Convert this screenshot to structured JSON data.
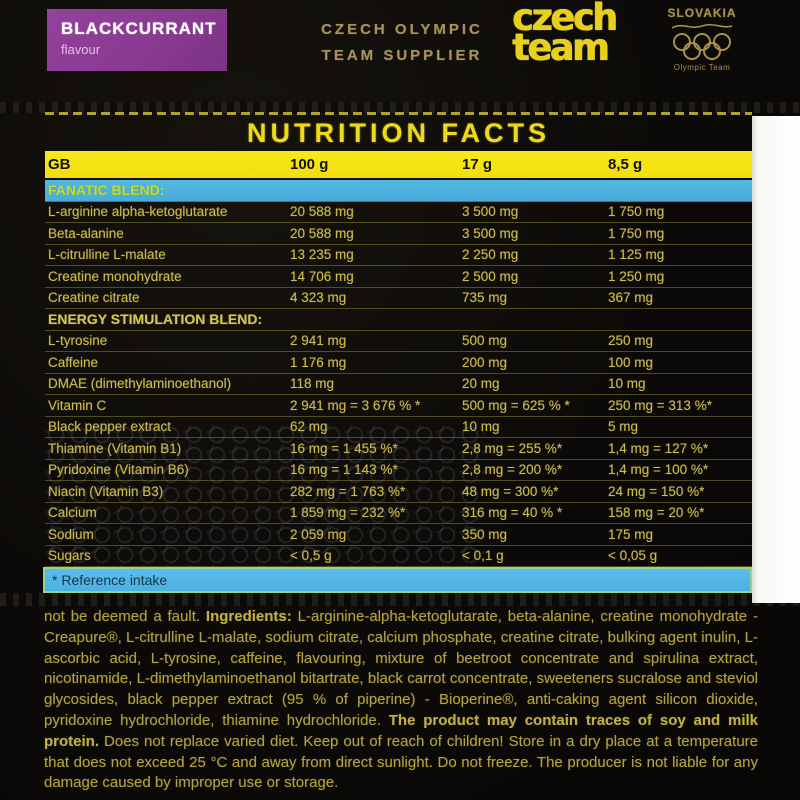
{
  "header": {
    "flavour_badge": {
      "title": "BLACKCURRANT",
      "subtitle": "flavour"
    },
    "supplier_line1": "CZECH OLYMPIC",
    "supplier_line2": "TEAM SUPPLIER",
    "czech_team_logo": {
      "line1": "czech",
      "line2": "team"
    },
    "slovakia_logo": {
      "country": "SLOVAKIA",
      "subtitle": "Olympic Team",
      "icon": "olympic-rings-icon"
    }
  },
  "nutrition": {
    "title": "NUTRITION FACTS",
    "columns": {
      "region": "GB",
      "per100": "100 g",
      "per17": "17 g",
      "per85": "8,5 g"
    },
    "rows": [
      {
        "type": "section_cyan",
        "label": "FANATIC BLEND:"
      },
      {
        "type": "data",
        "name": "L-arginine alpha-ketoglutarate",
        "v100": "20 588 mg",
        "v17": "3 500 mg",
        "v85": "1 750 mg"
      },
      {
        "type": "data",
        "name": "Beta-alanine",
        "v100": "20 588 mg",
        "v17": "3 500 mg",
        "v85": "1 750 mg"
      },
      {
        "type": "data",
        "name": "L-citrulline L-malate",
        "v100": "13 235 mg",
        "v17": "2 250 mg",
        "v85": "1 125 mg"
      },
      {
        "type": "data",
        "name": "Creatine monohydrate",
        "v100": "14 706 mg",
        "v17": "2 500 mg",
        "v85": "1 250 mg"
      },
      {
        "type": "data",
        "name": "Creatine citrate",
        "v100": "4 323 mg",
        "v17": "735 mg",
        "v85": "367 mg"
      },
      {
        "type": "section_plain",
        "label": "ENERGY STIMULATION BLEND:"
      },
      {
        "type": "data",
        "name": "L-tyrosine",
        "v100": "2 941 mg",
        "v17": "500 mg",
        "v85": "250 mg"
      },
      {
        "type": "data",
        "name": "Caffeine",
        "v100": "1 176 mg",
        "v17": "200 mg",
        "v85": "100 mg"
      },
      {
        "type": "data",
        "name": "DMAE (dimethylaminoethanol)",
        "v100": "118 mg",
        "v17": "20 mg",
        "v85": "10 mg"
      },
      {
        "type": "data",
        "name": "Vitamin C",
        "v100": "2 941 mg = 3 676 % *",
        "v17": "500 mg = 625 % *",
        "v85": "250 mg = 313 %*"
      },
      {
        "type": "data",
        "name": "Black pepper extract",
        "v100": "62 mg",
        "v17": "10 mg",
        "v85": "5 mg"
      },
      {
        "type": "data",
        "name": "Thiamine (Vitamin B1)",
        "v100": "16 mg = 1 455 %*",
        "v17": "2,8 mg = 255 %*",
        "v85": "1,4 mg = 127 %*"
      },
      {
        "type": "data",
        "name": "Pyridoxine (Vitamin B6)",
        "v100": "16 mg = 1 143 %*",
        "v17": "2,8 mg = 200 %*",
        "v85": "1,4 mg = 100 %*"
      },
      {
        "type": "data",
        "name": "Niacin (Vitamin B3)",
        "v100": "282 mg = 1 763 %*",
        "v17": "48 mg = 300 %*",
        "v85": "24 mg = 150 %*"
      },
      {
        "type": "data",
        "name": "Calcium",
        "v100": "1 859 mg = 232 %*",
        "v17": "316 mg = 40 % *",
        "v85": "158 mg = 20 %*"
      },
      {
        "type": "data",
        "name": "Sodium",
        "v100": "2 059 mg",
        "v17": "350 mg",
        "v85": "175 mg"
      },
      {
        "type": "data",
        "name": "Sugars",
        "v100": "< 0,5 g",
        "v17": "< 0,1 g",
        "v85": "< 0,05 g"
      }
    ],
    "footnote": "* Reference intake"
  },
  "fine_print": {
    "segments": [
      {
        "text": "not be deemed a fault. ",
        "bold": false
      },
      {
        "text": "Ingredients: ",
        "bold": true
      },
      {
        "text": "L-arginine-alpha-ketoglutarate, beta-alanine, creatine monohydrate - Creapure®, L-citrulline L-malate, sodium citrate, calcium phosphate, creatine citrate, bulking agent inulin, L-ascorbic acid, L-tyrosine, caffeine, flavouring, mixture of beetroot concentrate and spirulina extract, nicotinamide, L-dimethylaminoethanol bitartrate, black carrot concentrate, sweeteners sucralose and steviol glycosides, black pepper extract (95 % of piperine) - Bioperine®, anti-caking agent silicon dioxide, pyridoxine hydrochloride, thiamine hydrochloride. ",
        "bold": false
      },
      {
        "text": "The product may contain traces of soy and milk protein. ",
        "bold": true
      },
      {
        "text": "Does not replace varied diet. Keep out of reach of children! Store in a dry place at a temperature that does not exceed 25 °C and away from direct sunlight. Do not freeze. The producer is not liable for any damage caused by improper use or storage.",
        "bold": false
      }
    ]
  },
  "colors": {
    "accent_yellow": "#f2de0e",
    "accent_cyan": "#4db1de",
    "badge_purple": "#8a3a92",
    "text_olive": "#ccba4a",
    "logo_gold": "#a6914b"
  }
}
